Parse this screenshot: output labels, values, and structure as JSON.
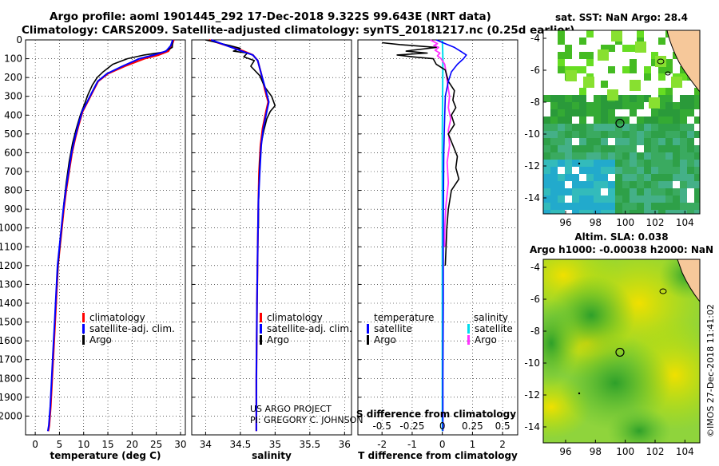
{
  "header": {
    "line1": "Argo profile: aoml 1901445_292 17-Dec-2018 9.322S 99.643E (NRT data)",
    "line2": "Climatology: CARS2009. Satellite-adjusted climatology: synTS_20181217.nc (0.25d earlier)"
  },
  "colors": {
    "climatology": "#ff0000",
    "satellite": "#0000ff",
    "argo": "#000000",
    "argo_salinity": "#ff33ff",
    "satellite_salinity": "#00ddee"
  },
  "legend_tsal": {
    "clim": "climatology",
    "sat": "satellite-adj. clim.",
    "argo": "Argo"
  },
  "legend_diff": {
    "temp_head": "temperature",
    "sal_head": "salinity",
    "sat": "satellite",
    "argo": "Argo"
  },
  "credits": {
    "project": "US ARGO PROJECT",
    "pi": "PI: GREGORY C. JOHNSON"
  },
  "map_top": {
    "title": "sat. SST: NaN Argo: 28.4"
  },
  "map_bottom": {
    "title1": "Altim. SLA: 0.038",
    "title2": "Argo h1000: -0.00038 h2000: NaN"
  },
  "watermark": "©IMOS 27-Dec-2018 11:41:02",
  "chart_data": [
    {
      "type": "line",
      "xlabel": "temperature (deg C)",
      "ylabel": "pressure",
      "xlim": [
        -2,
        31
      ],
      "ylim": [
        2100,
        0
      ],
      "xticks": [
        0,
        5,
        10,
        15,
        20,
        25,
        30
      ],
      "yticks": [
        0,
        100,
        200,
        300,
        400,
        500,
        600,
        700,
        800,
        900,
        1000,
        1100,
        1200,
        1300,
        1400,
        1500,
        1600,
        1700,
        1800,
        1900,
        2000
      ],
      "series": [
        {
          "name": "climatology",
          "x": [
            28.6,
            28.2,
            27.5,
            25.5,
            22.5,
            18.5,
            15.0,
            13.0,
            11.8,
            10.8,
            9.8,
            9.0,
            8.3,
            7.6,
            7.0,
            6.4,
            5.9,
            5.5,
            5.1,
            4.7,
            4.4,
            4.1,
            3.8,
            3.5,
            3.2,
            2.9,
            2.7
          ],
          "y": [
            0,
            30,
            60,
            80,
            100,
            140,
            180,
            220,
            280,
            330,
            380,
            450,
            520,
            600,
            700,
            800,
            900,
            1000,
            1100,
            1200,
            1350,
            1500,
            1650,
            1800,
            1950,
            2050,
            2080
          ]
        },
        {
          "name": "satellite-adj. clim.",
          "x": [
            28.4,
            28.0,
            27.0,
            24.5,
            21.5,
            18.0,
            14.8,
            12.9,
            11.7,
            10.7,
            9.7,
            8.9,
            8.2,
            7.5,
            6.9,
            6.3,
            5.8,
            5.4,
            5.0,
            4.6,
            4.3,
            4.0,
            3.7,
            3.4,
            3.1,
            2.8,
            2.6
          ],
          "y": [
            0,
            30,
            60,
            80,
            100,
            140,
            180,
            220,
            280,
            330,
            380,
            450,
            520,
            600,
            700,
            800,
            900,
            1000,
            1100,
            1200,
            1350,
            1500,
            1650,
            1800,
            1950,
            2050,
            2080
          ]
        },
        {
          "name": "Argo",
          "x": [
            28.4,
            28.3,
            26.5,
            22.5,
            19.0,
            16.0,
            14.0,
            12.8,
            11.8,
            10.9,
            10.2,
            9.3,
            8.5,
            7.7,
            7.0,
            6.4,
            5.9,
            5.5,
            5.1,
            4.7,
            4.4
          ],
          "y": [
            0,
            40,
            65,
            80,
            100,
            130,
            170,
            200,
            240,
            290,
            340,
            400,
            470,
            550,
            650,
            760,
            870,
            980,
            1090,
            1200,
            1320
          ]
        }
      ]
    },
    {
      "type": "line",
      "xlabel": "salinity",
      "xlim": [
        33.8,
        36.1
      ],
      "ylim": [
        2100,
        0
      ],
      "xticks": [
        34,
        34.5,
        35,
        35.5,
        36
      ],
      "series": [
        {
          "name": "climatology",
          "x": [
            34.05,
            34.3,
            34.55,
            34.68,
            34.75,
            34.8,
            34.85,
            34.9,
            34.87,
            34.82,
            34.79,
            34.77,
            34.76,
            34.75,
            34.74,
            34.73,
            34.73
          ],
          "y": [
            0,
            30,
            60,
            80,
            110,
            180,
            260,
            330,
            380,
            470,
            560,
            700,
            850,
            1100,
            1400,
            1800,
            2080
          ]
        },
        {
          "name": "satellite-adj. clim.",
          "x": [
            34.08,
            34.3,
            34.52,
            34.68,
            34.75,
            34.8,
            34.86,
            34.91,
            34.88,
            34.83,
            34.8,
            34.78,
            34.76,
            34.75,
            34.74,
            34.73,
            34.73
          ],
          "y": [
            0,
            30,
            60,
            80,
            110,
            180,
            260,
            330,
            380,
            470,
            560,
            700,
            850,
            1100,
            1400,
            1800,
            2080
          ]
        },
        {
          "name": "Argo",
          "x": [
            34.0,
            34.35,
            34.5,
            34.4,
            34.6,
            34.55,
            34.7,
            34.65,
            34.78,
            34.85,
            34.95,
            35.0,
            34.93,
            34.88,
            34.84,
            34.8,
            34.78,
            34.77,
            34.76,
            34.76
          ],
          "y": [
            0,
            30,
            45,
            60,
            70,
            90,
            110,
            140,
            190,
            250,
            300,
            350,
            380,
            420,
            480,
            550,
            650,
            760,
            880,
            1000
          ]
        }
      ]
    },
    {
      "type": "line",
      "xlabel": "T difference from climatology",
      "secondary_xlabel": "S difference from climatology",
      "xlim": [
        -2.8,
        2.5
      ],
      "ylim": [
        2100,
        0
      ],
      "xticks": [
        -2,
        -1,
        0,
        1,
        2
      ],
      "secondary_xticks": [
        -0.5,
        -0.25,
        0,
        0.25,
        0.5
      ],
      "series": [
        {
          "name": "temperature satellite",
          "x": [
            -0.2,
            0.1,
            0.4,
            0.6,
            0.8,
            0.7,
            0.5,
            0.3,
            0.2,
            0.1,
            0.08,
            0.05,
            0.04,
            0.03,
            0.03,
            0.02,
            0.02
          ],
          "y": [
            0,
            20,
            40,
            60,
            80,
            100,
            130,
            170,
            220,
            300,
            400,
            600,
            800,
            1100,
            1400,
            1800,
            2080
          ]
        },
        {
          "name": "temperature Argo",
          "x": [
            -2.0,
            -1.4,
            -0.2,
            -1.0,
            -1.2,
            -0.5,
            -1.5,
            -1.0,
            -0.3,
            -0.2,
            0.1,
            0.2,
            0.4,
            0.35,
            0.45,
            0.3,
            0.4,
            0.2,
            0.35,
            0.5,
            0.45,
            0.55,
            0.3,
            0.2,
            0.15,
            0.1
          ],
          "y": [
            15,
            25,
            40,
            55,
            60,
            70,
            80,
            90,
            100,
            130,
            160,
            220,
            270,
            320,
            360,
            400,
            450,
            500,
            560,
            620,
            680,
            740,
            800,
            900,
            1000,
            1200
          ]
        },
        {
          "name": "salinity satellite",
          "x": [
            0.0,
            0.02,
            0.01,
            0.0,
            0.0,
            0.0,
            0.0,
            0.0,
            0.0
          ],
          "y": [
            0,
            100,
            300,
            500,
            800,
            1100,
            1400,
            1800,
            2080
          ]
        },
        {
          "name": "salinity Argo",
          "x": [
            -0.1,
            -0.04,
            -0.07,
            -0.03,
            -0.06,
            -0.02,
            -0.04,
            -0.01,
            0.02,
            0.03,
            0.04,
            0.06,
            0.05,
            0.07,
            0.05,
            0.06,
            0.04,
            0.05,
            0.03,
            0.02,
            0.02
          ],
          "y": [
            0,
            20,
            30,
            40,
            55,
            70,
            85,
            100,
            130,
            170,
            220,
            300,
            360,
            420,
            480,
            560,
            650,
            760,
            880,
            1000,
            1100
          ]
        }
      ]
    },
    {
      "type": "heatmap",
      "title": "sat. SST: NaN Argo: 28.4",
      "xlim": [
        94.5,
        105
      ],
      "ylim": [
        -15,
        -3.5
      ],
      "xticks": [
        96,
        98,
        100,
        102,
        104
      ],
      "yticks": [
        -4,
        -6,
        -8,
        -10,
        -12,
        -14
      ],
      "argo_position": {
        "lon": 99.643,
        "lat": -9.322
      }
    },
    {
      "type": "heatmap",
      "title": "Altim. SLA: 0.038",
      "subtitle": "Argo h1000: -0.00038 h2000: NaN",
      "xlim": [
        94.5,
        105
      ],
      "ylim": [
        -15,
        -3.5
      ],
      "xticks": [
        96,
        98,
        100,
        102,
        104
      ],
      "yticks": [
        -4,
        -6,
        -8,
        -10,
        -12,
        -14
      ],
      "argo_position": {
        "lon": 99.643,
        "lat": -9.322
      }
    }
  ]
}
